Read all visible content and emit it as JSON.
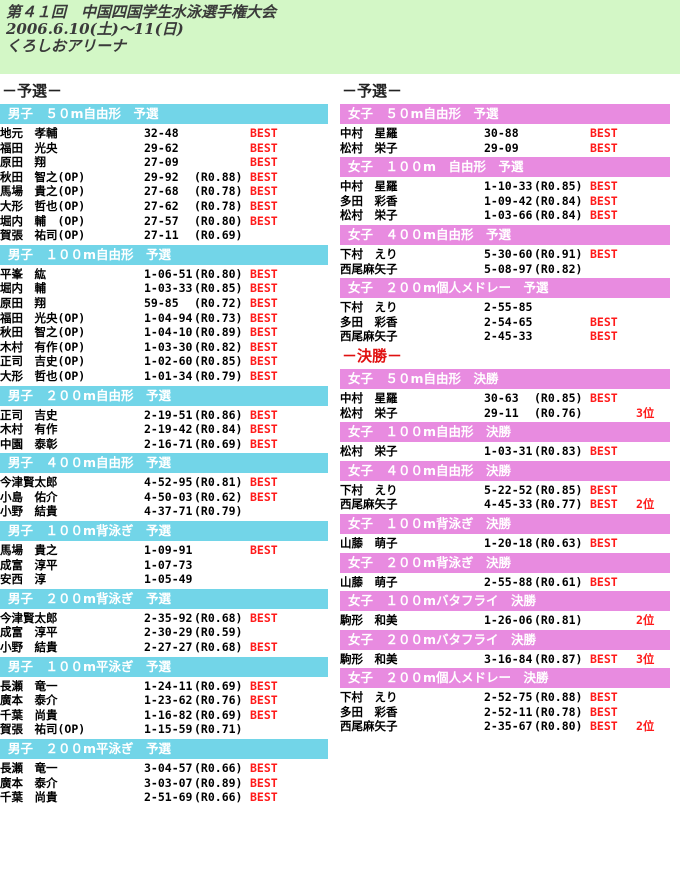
{
  "header": {
    "line1": "第４１回　中国四国学生水泳選手権大会",
    "line2": "2006.6.10(土)～11(日)",
    "line3": "くろしおアリーナ"
  },
  "left": {
    "stage": "－予選－",
    "sections": [
      {
        "title": "男子　５０m自由形　予選",
        "rows": [
          {
            "name": "地元　孝輔",
            "time": "32-48",
            "record": "",
            "best": "BEST"
          },
          {
            "name": "福田　光央",
            "time": "29-62",
            "record": "",
            "best": "BEST"
          },
          {
            "name": "原田　翔",
            "time": "27-09",
            "record": "",
            "best": "BEST"
          },
          {
            "name": "秋田　智之(OP)",
            "time": "29-92",
            "record": "(R0.88)",
            "best": "BEST"
          },
          {
            "name": "馬場　貴之(OP)",
            "time": "27-68",
            "record": "(R0.78)",
            "best": "BEST"
          },
          {
            "name": "大形　哲也(OP)",
            "time": "27-62",
            "record": "(R0.78)",
            "best": "BEST"
          },
          {
            "name": "堀内　輔　(OP)",
            "time": "27-57",
            "record": "(R0.80)",
            "best": "BEST"
          },
          {
            "name": "賀張　祐司(OP)",
            "time": "27-11",
            "record": "(R0.69)",
            "best": ""
          }
        ]
      },
      {
        "title": "男子　１００m自由形　予選",
        "rows": [
          {
            "name": "平峯　紘",
            "time": "1-06-51",
            "record": "(R0.80)",
            "best": "BEST"
          },
          {
            "name": "堀内　輔",
            "time": "1-03-33",
            "record": "(R0.85)",
            "best": "BEST"
          },
          {
            "name": "原田　翔",
            "time": "59-85",
            "record": "(R0.72)",
            "best": "BEST"
          },
          {
            "name": "福田　光央(OP)",
            "time": "1-04-94",
            "record": "(R0.73)",
            "best": "BEST"
          },
          {
            "name": "秋田　智之(OP)",
            "time": "1-04-10",
            "record": "(R0.89)",
            "best": "BEST"
          },
          {
            "name": "木村　有作(OP)",
            "time": "1-03-30",
            "record": "(R0.82)",
            "best": "BEST"
          },
          {
            "name": "正司　吉史(OP)",
            "time": "1-02-60",
            "record": "(R0.85)",
            "best": "BEST"
          },
          {
            "name": "大形　哲也(OP)",
            "time": "1-01-34",
            "record": "(R0.79)",
            "best": "BEST"
          }
        ]
      },
      {
        "title": "男子　２００m自由形　予選",
        "rows": [
          {
            "name": "正司　吉史",
            "time": "2-19-51",
            "record": "(R0.86)",
            "best": "BEST"
          },
          {
            "name": "木村　有作",
            "time": "2-19-42",
            "record": "(R0.84)",
            "best": "BEST"
          },
          {
            "name": "中園　泰彰",
            "time": "2-16-71",
            "record": "(R0.69)",
            "best": "BEST"
          }
        ]
      },
      {
        "title": "男子　４００m自由形　予選",
        "rows": [
          {
            "name": "今津賢太郎",
            "time": "4-52-95",
            "record": "(R0.81)",
            "best": "BEST"
          },
          {
            "name": "小島　佑介",
            "time": "4-50-03",
            "record": "(R0.62)",
            "best": "BEST"
          },
          {
            "name": "小野　結貴",
            "time": "4-37-71",
            "record": "(R0.79)",
            "best": ""
          }
        ]
      },
      {
        "title": "男子　１００m背泳ぎ　予選",
        "rows": [
          {
            "name": "馬場　貴之",
            "time": "1-09-91",
            "record": "",
            "best": "BEST"
          },
          {
            "name": "成富　淳平",
            "time": "1-07-73",
            "record": "",
            "best": ""
          },
          {
            "name": "安西　淳",
            "time": "1-05-49",
            "record": "",
            "best": ""
          }
        ]
      },
      {
        "title": "男子　２００m背泳ぎ　予選",
        "rows": [
          {
            "name": "今津賢太郎",
            "time": "2-35-92",
            "record": "(R0.68)",
            "best": "BEST"
          },
          {
            "name": "成富　淳平",
            "time": "2-30-29",
            "record": "(R0.59)",
            "best": ""
          },
          {
            "name": "小野　結貴",
            "time": "2-27-27",
            "record": "(R0.68)",
            "best": "BEST"
          }
        ]
      },
      {
        "title": "男子　１００m平泳ぎ　予選",
        "rows": [
          {
            "name": "長瀬　竜一",
            "time": "1-24-11",
            "record": "(R0.69)",
            "best": "BEST"
          },
          {
            "name": "廣本　泰介",
            "time": "1-23-62",
            "record": "(R0.76)",
            "best": "BEST"
          },
          {
            "name": "千葉　尚貴",
            "time": "1-16-82",
            "record": "(R0.69)",
            "best": "BEST"
          },
          {
            "name": "賀張　祐司(OP)",
            "time": "1-15-59",
            "record": "(R0.71)",
            "best": ""
          }
        ]
      },
      {
        "title": "男子　２００m平泳ぎ　予選",
        "rows": [
          {
            "name": "長瀬　竜一",
            "time": "3-04-57",
            "record": "(R0.66)",
            "best": "BEST"
          },
          {
            "name": "廣本　泰介",
            "time": "3-03-07",
            "record": "(R0.89)",
            "best": "BEST"
          },
          {
            "name": "千葉　尚貴",
            "time": "2-51-69",
            "record": "(R0.66)",
            "best": "BEST"
          }
        ]
      }
    ]
  },
  "right": {
    "stage_prelim": "－予選－",
    "prelim_sections": [
      {
        "title": "女子　５０m自由形　予選",
        "rows": [
          {
            "name": "中村　星羅",
            "time": "30-88",
            "record": "",
            "best": "BEST",
            "place": ""
          },
          {
            "name": "松村　栄子",
            "time": "29-09",
            "record": "",
            "best": "BEST",
            "place": ""
          }
        ]
      },
      {
        "title": "女子　１００m　自由形　予選",
        "rows": [
          {
            "name": "中村　星羅",
            "time": "1-10-33",
            "record": "(R0.85)",
            "best": "BEST",
            "place": ""
          },
          {
            "name": "多田　彩香",
            "time": "1-09-42",
            "record": "(R0.84)",
            "best": "BEST",
            "place": ""
          },
          {
            "name": "松村　栄子",
            "time": "1-03-66",
            "record": "(R0.84)",
            "best": "BEST",
            "place": ""
          }
        ]
      },
      {
        "title": "女子　４００m自由形　予選",
        "rows": [
          {
            "name": "下村　えり",
            "time": "5-30-60",
            "record": "(R0.91)",
            "best": "BEST",
            "place": ""
          },
          {
            "name": "西尾麻矢子",
            "time": "5-08-97",
            "record": "(R0.82)",
            "best": "",
            "place": ""
          }
        ]
      },
      {
        "title": "女子　２００m個人メドレー　予選",
        "rows": [
          {
            "name": "下村　えり",
            "time": "2-55-85",
            "record": "",
            "best": "",
            "place": ""
          },
          {
            "name": "多田　彩香",
            "time": "2-54-65",
            "record": "",
            "best": "BEST",
            "place": ""
          },
          {
            "name": "西尾麻矢子",
            "time": "2-45-33",
            "record": "",
            "best": "BEST",
            "place": ""
          }
        ]
      }
    ],
    "stage_final": "－決勝－",
    "final_sections": [
      {
        "title": "女子　５０m自由形　決勝",
        "rows": [
          {
            "name": "中村　星羅",
            "time": "30-63",
            "record": "(R0.85)",
            "best": "BEST",
            "place": ""
          },
          {
            "name": "松村　栄子",
            "time": "29-11",
            "record": "(R0.76)",
            "best": "",
            "place": "3位"
          }
        ]
      },
      {
        "title": "女子　１００m自由形　決勝",
        "rows": [
          {
            "name": "松村　栄子",
            "time": "1-03-31",
            "record": "(R0.83)",
            "best": "BEST",
            "place": ""
          }
        ]
      },
      {
        "title": "女子　４００m自由形　決勝",
        "rows": [
          {
            "name": "下村　えり",
            "time": "5-22-52",
            "record": "(R0.85)",
            "best": "BEST",
            "place": ""
          },
          {
            "name": "西尾麻矢子",
            "time": "4-45-33",
            "record": "(R0.77)",
            "best": "BEST",
            "place": "2位"
          }
        ]
      },
      {
        "title": "女子　１００m背泳ぎ　決勝",
        "rows": [
          {
            "name": "山藤　萌子",
            "time": "1-20-18",
            "record": "(R0.63)",
            "best": "BEST",
            "place": ""
          }
        ]
      },
      {
        "title": "女子　２００m背泳ぎ　決勝",
        "rows": [
          {
            "name": "山藤　萌子",
            "time": "2-55-88",
            "record": "(R0.61)",
            "best": "BEST",
            "place": ""
          }
        ]
      },
      {
        "title": "女子　１００mバタフライ　決勝",
        "rows": [
          {
            "name": "駒形　和美",
            "time": "1-26-06",
            "record": "(R0.81)",
            "best": "",
            "place": "2位"
          }
        ]
      },
      {
        "title": "女子　２００mバタフライ　決勝",
        "rows": [
          {
            "name": "駒形　和美",
            "time": "3-16-84",
            "record": "(R0.87)",
            "best": "BEST",
            "place": "3位"
          }
        ]
      },
      {
        "title": "女子　２００m個人メドレー　決勝",
        "rows": [
          {
            "name": "下村　えり",
            "time": "2-52-75",
            "record": "(R0.88)",
            "best": "BEST",
            "place": ""
          },
          {
            "name": "多田　彩香",
            "time": "2-52-11",
            "record": "(R0.78)",
            "best": "BEST",
            "place": ""
          },
          {
            "name": "西尾麻矢子",
            "time": "2-35-67",
            "record": "(R0.80)",
            "best": "BEST",
            "place": "2位"
          }
        ]
      }
    ]
  }
}
